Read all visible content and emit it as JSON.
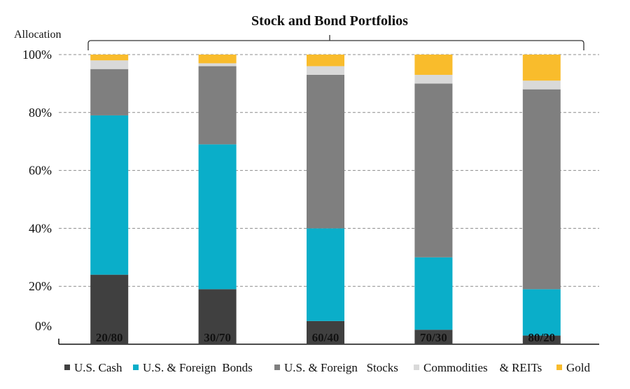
{
  "chart_data": {
    "type": "bar",
    "stacked": true,
    "title": "Stock and Bond  Portfolios",
    "ylabel": "Allocation",
    "xlabel": "",
    "ylim": [
      0,
      100
    ],
    "yticks": [
      "0%",
      "20%",
      "40%",
      "60%",
      "80%",
      "100%"
    ],
    "grid": true,
    "legend_position": "bottom",
    "categories": [
      "20/80",
      "30/70",
      "60/40",
      "70/30",
      "80/20"
    ],
    "series": [
      {
        "name": "U.S. Cash",
        "color": "#404040",
        "values": [
          24,
          19,
          8,
          5,
          3
        ]
      },
      {
        "name": "U.S. & Foreign  Bonds",
        "color": "#0aaec9",
        "values": [
          55,
          50,
          32,
          25,
          16
        ]
      },
      {
        "name": "U.S. & Foreign   Stocks",
        "color": "#7f7f7f",
        "values": [
          16,
          27,
          53,
          60,
          69
        ]
      },
      {
        "name": "Commodities    & REITs",
        "color": "#d9d9d9",
        "values": [
          3,
          1,
          3,
          3,
          3
        ]
      },
      {
        "name": "Gold",
        "color": "#f9bc2c",
        "values": [
          2,
          3,
          4,
          7,
          9
        ]
      }
    ]
  }
}
